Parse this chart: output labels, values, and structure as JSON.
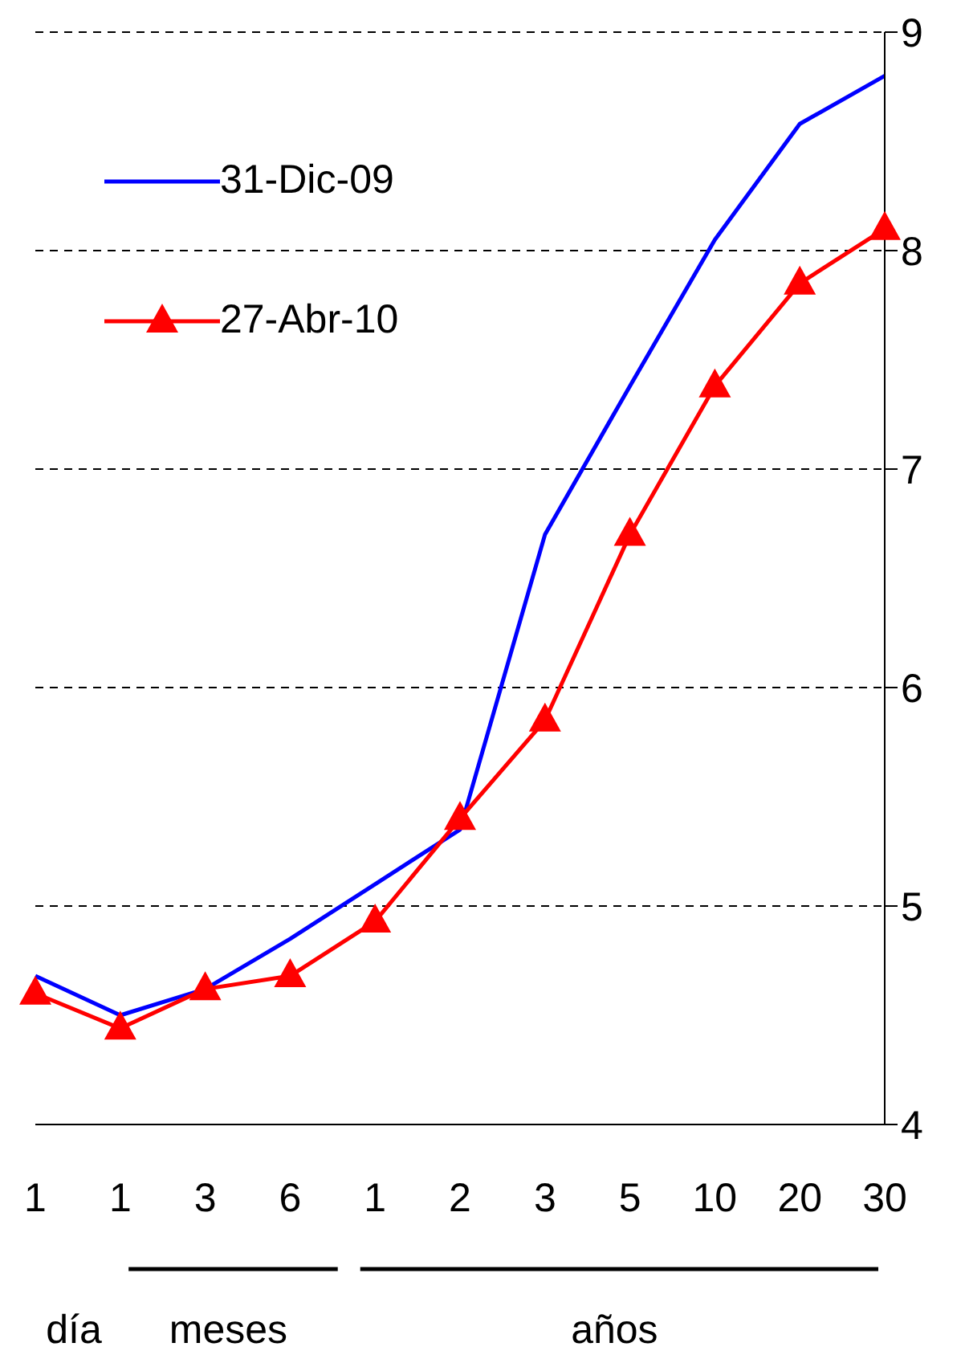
{
  "chart_data": {
    "type": "line",
    "categories": [
      "1",
      "1",
      "3",
      "6",
      "1",
      "2",
      "3",
      "5",
      "10",
      "20",
      "30"
    ],
    "series": [
      {
        "name": "31-Dic-09",
        "color": "#0000ff",
        "marker": "none",
        "values": [
          4.68,
          4.5,
          4.62,
          4.85,
          5.1,
          5.35,
          6.7,
          7.38,
          8.05,
          8.58,
          8.8
        ]
      },
      {
        "name": "27-Abr-10",
        "color": "#ff0000",
        "marker": "triangle",
        "values": [
          4.6,
          4.44,
          4.62,
          4.68,
          4.93,
          5.4,
          5.85,
          6.7,
          7.38,
          7.85,
          8.1
        ]
      }
    ],
    "ylim": [
      4,
      9
    ],
    "yticks": [
      4,
      5,
      6,
      7,
      8,
      9
    ],
    "grid": "y",
    "legend": "top left",
    "annotations": [
      "día",
      "meses",
      "años"
    ]
  }
}
